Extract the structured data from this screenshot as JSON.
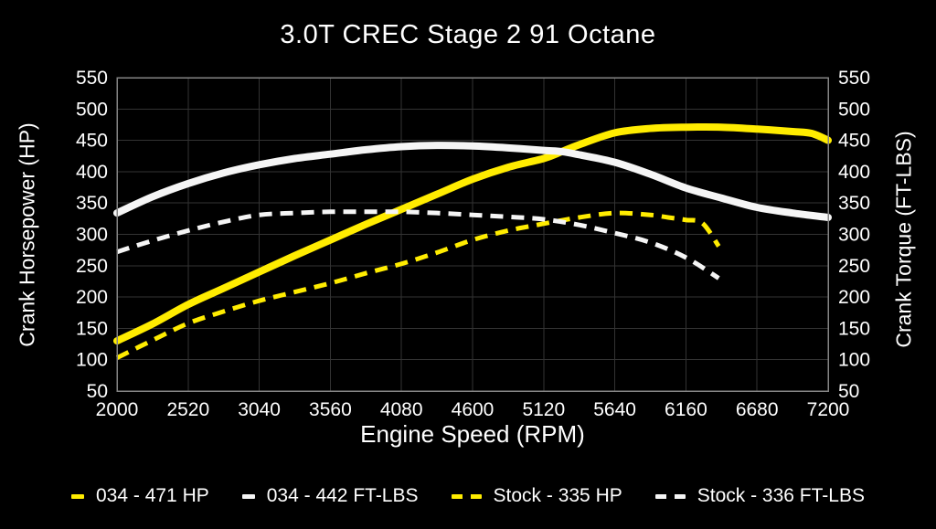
{
  "title": "3.0T CREC Stage 2 91 Octane",
  "axes": {
    "x_label": "Engine Speed (RPM)",
    "y_left_label": "Crank Horsepower (HP)",
    "y_right_label": "Crank Torque (FT-LBS)"
  },
  "colors": {
    "background": "#000000",
    "text": "#ffffff",
    "grid": "#333333",
    "border": "#848484",
    "yellow": "#ffec00",
    "white": "#f5f5f5"
  },
  "legend": {
    "items": [
      {
        "label": "034 - 471 HP",
        "color": "#ffec00",
        "style": "solid"
      },
      {
        "label": "034 - 442 FT-LBS",
        "color": "#f5f5f5",
        "style": "solid"
      },
      {
        "label": "Stock - 335 HP",
        "color": "#ffec00",
        "style": "dashed"
      },
      {
        "label": "Stock - 336 FT-LBS",
        "color": "#f5f5f5",
        "style": "dashed"
      }
    ]
  },
  "chart_data": {
    "type": "line",
    "title": "3.0T CREC Stage 2 91 Octane",
    "xlabel": "Engine Speed (RPM)",
    "ylabel_left": "Crank Horsepower (HP)",
    "ylabel_right": "Crank Torque (FT-LBS)",
    "x_range": [
      2000,
      7200
    ],
    "y_range": [
      50,
      550
    ],
    "x_ticks": [
      2000,
      2520,
      3040,
      3560,
      4080,
      4600,
      5120,
      5640,
      6160,
      6680,
      7200
    ],
    "y_ticks": [
      50,
      100,
      150,
      200,
      250,
      300,
      350,
      400,
      450,
      500,
      550
    ],
    "grid": true,
    "legend_position": "bottom",
    "series": [
      {
        "name": "034 - 471 HP",
        "peak": 471,
        "unit": "HP",
        "color": "#ffec00",
        "style": "solid",
        "width": 8,
        "points": [
          [
            2000,
            130
          ],
          [
            2260,
            157
          ],
          [
            2520,
            188
          ],
          [
            2780,
            214
          ],
          [
            3040,
            240
          ],
          [
            3300,
            266
          ],
          [
            3560,
            291
          ],
          [
            3820,
            316
          ],
          [
            4080,
            340
          ],
          [
            4340,
            364
          ],
          [
            4600,
            388
          ],
          [
            4860,
            407
          ],
          [
            5120,
            421
          ],
          [
            5252,
            432
          ],
          [
            5380,
            443
          ],
          [
            5640,
            462
          ],
          [
            5900,
            469
          ],
          [
            6160,
            471
          ],
          [
            6420,
            471
          ],
          [
            6680,
            468
          ],
          [
            6940,
            464
          ],
          [
            7080,
            461
          ],
          [
            7200,
            450
          ]
        ]
      },
      {
        "name": "034 - 442 FT-LBS",
        "peak": 442,
        "unit": "FT-LBS",
        "color": "#f5f5f5",
        "style": "solid",
        "width": 8,
        "points": [
          [
            2000,
            334
          ],
          [
            2260,
            360
          ],
          [
            2520,
            381
          ],
          [
            2780,
            398
          ],
          [
            3040,
            411
          ],
          [
            3300,
            421
          ],
          [
            3560,
            428
          ],
          [
            3820,
            435
          ],
          [
            4080,
            440
          ],
          [
            4340,
            442
          ],
          [
            4600,
            441
          ],
          [
            4860,
            438
          ],
          [
            5120,
            434
          ],
          [
            5252,
            432
          ],
          [
            5380,
            427
          ],
          [
            5640,
            415
          ],
          [
            5900,
            396
          ],
          [
            6160,
            374
          ],
          [
            6420,
            358
          ],
          [
            6680,
            343
          ],
          [
            6940,
            334
          ],
          [
            7200,
            327
          ]
        ]
      },
      {
        "name": "Stock - 335 HP",
        "peak": 335,
        "unit": "HP",
        "color": "#ffec00",
        "style": "dashed",
        "width": 5,
        "points": [
          [
            2000,
            103
          ],
          [
            2260,
            131
          ],
          [
            2520,
            158
          ],
          [
            2780,
            177
          ],
          [
            3040,
            194
          ],
          [
            3300,
            208
          ],
          [
            3560,
            222
          ],
          [
            3820,
            238
          ],
          [
            4080,
            253
          ],
          [
            4340,
            271
          ],
          [
            4600,
            291
          ],
          [
            4860,
            306
          ],
          [
            5120,
            317
          ],
          [
            5380,
            327
          ],
          [
            5640,
            334
          ],
          [
            5900,
            331
          ],
          [
            6030,
            327
          ],
          [
            6160,
            323
          ],
          [
            6280,
            318
          ],
          [
            6400,
            281
          ]
        ]
      },
      {
        "name": "Stock - 336 FT-LBS",
        "peak": 336,
        "unit": "FT-LBS",
        "color": "#f5f5f5",
        "style": "dashed",
        "width": 5,
        "points": [
          [
            2000,
            272
          ],
          [
            2260,
            290
          ],
          [
            2520,
            306
          ],
          [
            2780,
            320
          ],
          [
            3040,
            331
          ],
          [
            3300,
            334
          ],
          [
            3560,
            336
          ],
          [
            3820,
            336
          ],
          [
            4080,
            336
          ],
          [
            4340,
            334
          ],
          [
            4600,
            331
          ],
          [
            4860,
            328
          ],
          [
            5120,
            324
          ],
          [
            5380,
            315
          ],
          [
            5640,
            302
          ],
          [
            5900,
            287
          ],
          [
            6160,
            263
          ],
          [
            6400,
            230
          ]
        ]
      }
    ]
  }
}
